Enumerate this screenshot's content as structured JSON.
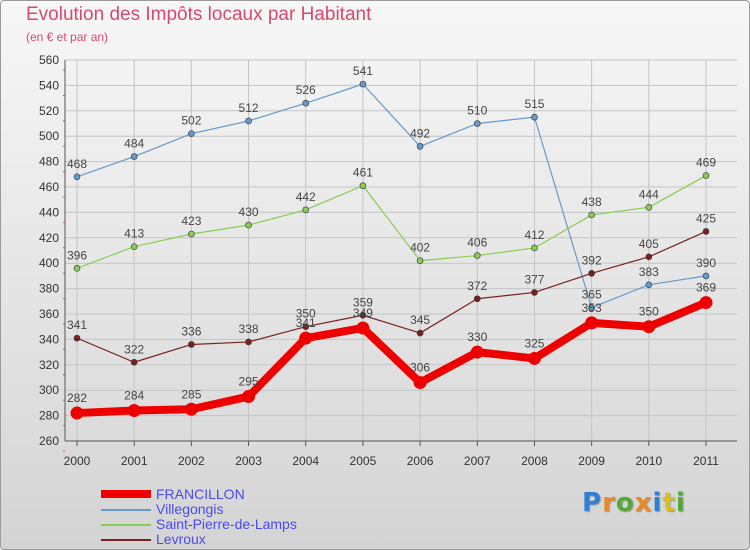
{
  "title": "Evolution des Impôts locaux par Habitant",
  "subtitle": "(en € et par an)",
  "logo": {
    "letters": [
      "P",
      "r",
      "o",
      "x",
      "i",
      "t",
      "i"
    ],
    "colors": [
      "#2f7fd6",
      "#e8892b",
      "#55aa33",
      "#e8892b",
      "#2f7fd6",
      "#d8c020",
      "#55aa33"
    ]
  },
  "chart_data": {
    "type": "line",
    "title": "Evolution des Impôts locaux par Habitant",
    "subtitle": "(en € et par an)",
    "xlabel": "",
    "ylabel": "",
    "ylim": [
      260,
      560
    ],
    "ytick_step": 20,
    "grid": true,
    "legend_position": "bottom-left",
    "categories": [
      "2000",
      "2001",
      "2002",
      "2003",
      "2004",
      "2005",
      "2006",
      "2007",
      "2008",
      "2009",
      "2010",
      "2011"
    ],
    "series": [
      {
        "name": "FRANCILLON",
        "color": "#ee0000",
        "values": [
          282,
          284,
          285,
          295,
          341,
          349,
          306,
          330,
          325,
          353,
          350,
          369
        ]
      },
      {
        "name": "Villegongis",
        "color": "#6699cc",
        "values": [
          468,
          484,
          502,
          512,
          526,
          541,
          492,
          510,
          515,
          365,
          383,
          390
        ]
      },
      {
        "name": "Saint-Pierre-de-Lamps",
        "color": "#88cc55",
        "values": [
          396,
          413,
          423,
          430,
          442,
          461,
          402,
          406,
          412,
          438,
          444,
          469
        ]
      },
      {
        "name": "Levroux",
        "color": "#772222",
        "values": [
          341,
          322,
          336,
          338,
          350,
          359,
          345,
          372,
          377,
          392,
          405,
          425
        ]
      }
    ]
  }
}
